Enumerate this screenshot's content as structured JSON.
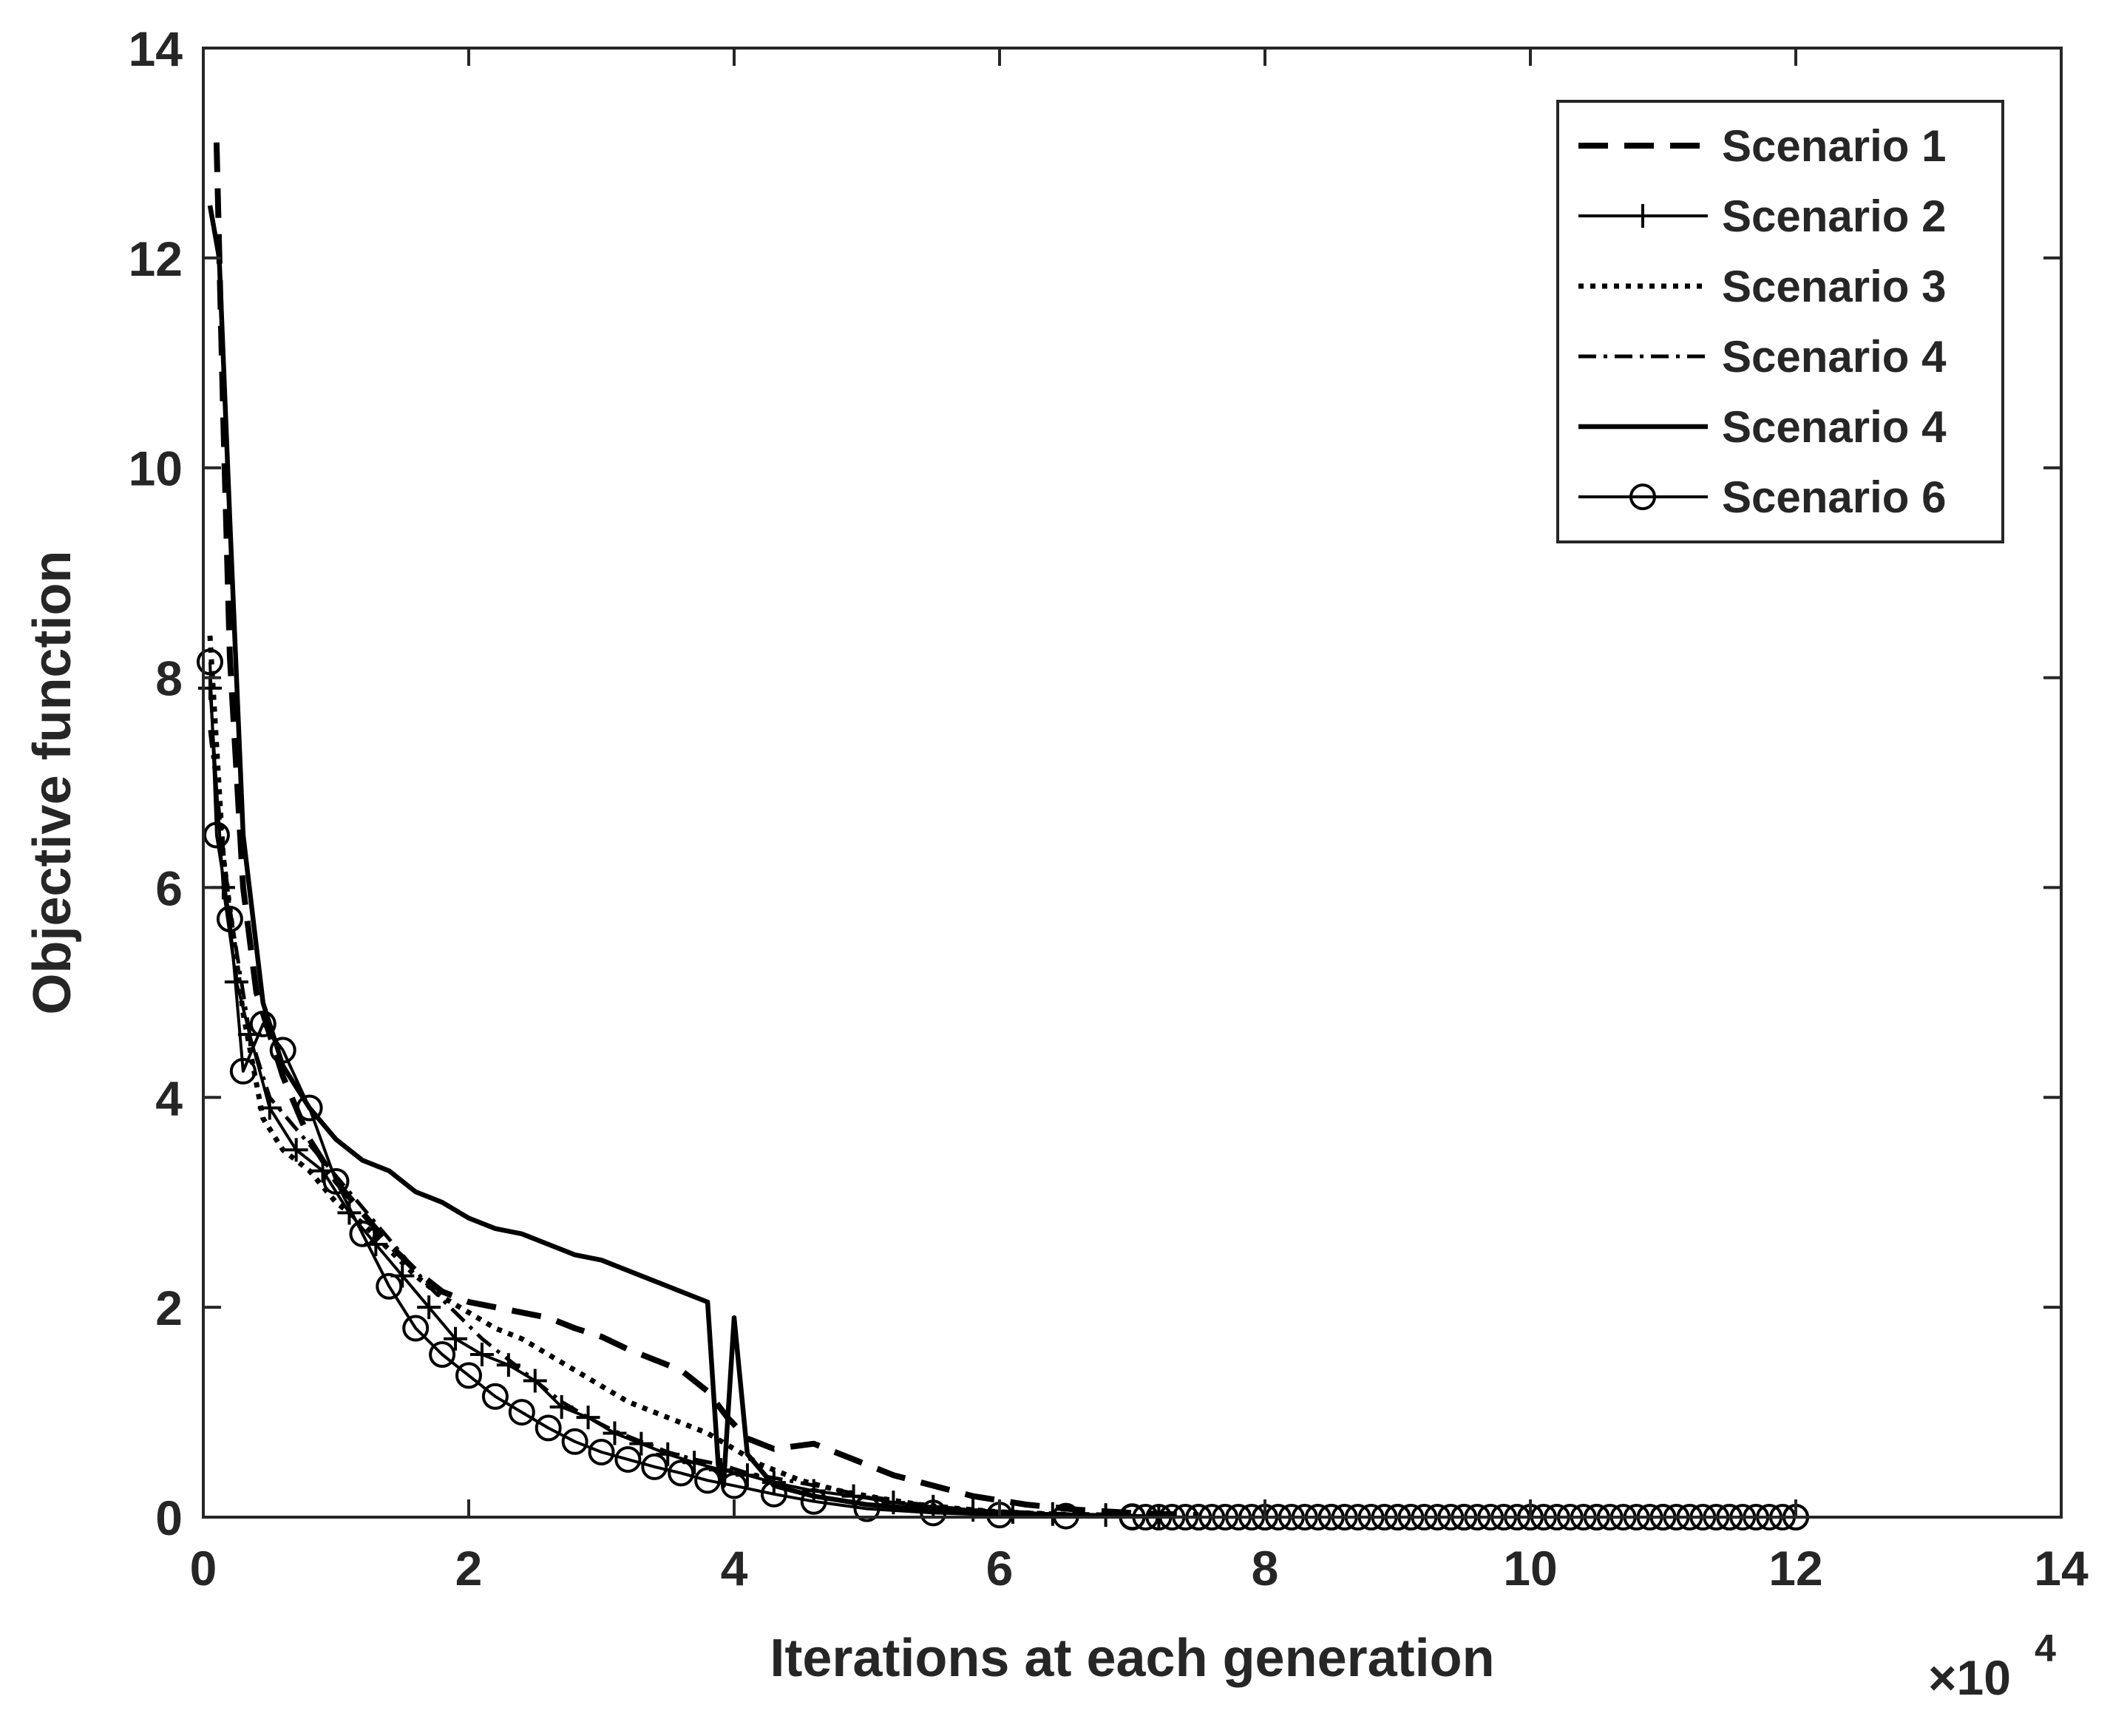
{
  "chart_data": {
    "type": "line",
    "title": "",
    "xlabel": "Iterations at each generation",
    "ylabel": "Objective function",
    "x_multiplier_label": "×10",
    "x_multiplier_exponent": "4",
    "xlim": [
      0,
      14
    ],
    "ylim": [
      0,
      14
    ],
    "x_ticks": [
      "0",
      "2",
      "4",
      "6",
      "8",
      "10",
      "12",
      "14"
    ],
    "y_ticks": [
      "0",
      "2",
      "4",
      "6",
      "8",
      "10",
      "12",
      "14"
    ],
    "x_tick_values": [
      0,
      2,
      4,
      6,
      8,
      10,
      12,
      14
    ],
    "y_tick_values": [
      0,
      2,
      4,
      6,
      8,
      10,
      12,
      14
    ],
    "grid": false,
    "legend_position": "top-right",
    "line_color": "#000000",
    "series": [
      {
        "name": "Scenario 1",
        "style": "dashed",
        "x": [
          0.1,
          0.15,
          0.2,
          0.3,
          0.4,
          0.6,
          0.8,
          1.0,
          1.2,
          1.4,
          1.6,
          1.8,
          2.0,
          2.2,
          2.4,
          2.6,
          2.8,
          3.0,
          3.2,
          3.4,
          3.6,
          3.8,
          3.95,
          4.1,
          4.3,
          4.6,
          4.9,
          5.2,
          5.5,
          5.8,
          6.2,
          6.6,
          7.0,
          7.5
        ],
        "y": [
          13.1,
          10.5,
          8.2,
          6.0,
          5.0,
          4.2,
          3.6,
          3.2,
          2.9,
          2.6,
          2.35,
          2.15,
          2.05,
          2.0,
          1.95,
          1.9,
          1.8,
          1.72,
          1.6,
          1.5,
          1.4,
          1.2,
          0.95,
          0.75,
          0.65,
          0.7,
          0.55,
          0.4,
          0.3,
          0.2,
          0.12,
          0.07,
          0.04,
          0.02
        ]
      },
      {
        "name": "Scenario 2",
        "style": "solid-plus",
        "x": [
          0.05,
          0.15,
          0.25,
          0.35,
          0.5,
          0.7,
          0.9,
          1.1,
          1.3,
          1.5,
          1.7,
          1.9,
          2.1,
          2.3,
          2.5,
          2.7,
          2.9,
          3.1,
          3.3,
          3.5,
          3.7,
          3.9,
          4.1,
          4.3,
          4.6,
          4.9,
          5.2,
          5.5,
          5.8,
          6.1,
          6.4,
          6.8,
          7.2
        ],
        "y": [
          7.9,
          6.0,
          5.1,
          4.6,
          3.9,
          3.5,
          3.3,
          2.9,
          2.6,
          2.3,
          2.0,
          1.7,
          1.55,
          1.45,
          1.3,
          1.05,
          0.95,
          0.8,
          0.7,
          0.6,
          0.52,
          0.45,
          0.4,
          0.33,
          0.25,
          0.2,
          0.14,
          0.1,
          0.07,
          0.05,
          0.03,
          0.02,
          0.01
        ]
      },
      {
        "name": "Scenario 3",
        "style": "dotted",
        "x": [
          0.05,
          0.15,
          0.3,
          0.45,
          0.6,
          0.8,
          1.0,
          1.2,
          1.4,
          1.6,
          1.8,
          2.0,
          2.2,
          2.4,
          2.6,
          2.8,
          3.0,
          3.2,
          3.4,
          3.6,
          3.8,
          4.0,
          4.2,
          4.5,
          4.8,
          5.1,
          5.4,
          5.7,
          6.0,
          6.4,
          6.8
        ],
        "y": [
          8.4,
          6.3,
          4.8,
          3.8,
          3.5,
          3.3,
          3.0,
          2.8,
          2.55,
          2.3,
          2.1,
          1.95,
          1.8,
          1.7,
          1.55,
          1.4,
          1.25,
          1.1,
          1.0,
          0.9,
          0.8,
          0.65,
          0.5,
          0.35,
          0.25,
          0.18,
          0.12,
          0.08,
          0.05,
          0.03,
          0.02
        ]
      },
      {
        "name": "Scenario 4",
        "style": "dash-dot",
        "x": [
          0.05,
          0.2,
          0.35,
          0.5,
          0.7,
          0.9,
          1.1,
          1.3,
          1.5,
          1.7,
          1.9,
          2.1,
          2.3,
          2.5,
          2.7,
          2.9,
          3.1,
          3.3,
          3.5,
          3.7,
          3.9,
          4.1,
          4.4,
          4.7,
          5.0,
          5.3,
          5.6,
          5.9,
          6.3,
          6.7,
          7.1
        ],
        "y": [
          7.5,
          5.8,
          4.6,
          4.0,
          3.7,
          3.4,
          3.1,
          2.8,
          2.5,
          2.2,
          1.95,
          1.7,
          1.5,
          1.3,
          1.1,
          0.95,
          0.82,
          0.72,
          0.62,
          0.55,
          0.5,
          0.42,
          0.35,
          0.28,
          0.2,
          0.14,
          0.09,
          0.06,
          0.04,
          0.02,
          0.01
        ]
      },
      {
        "name": "Scenario 4",
        "style": "solid-thick",
        "x": [
          0.05,
          0.12,
          0.2,
          0.3,
          0.45,
          0.6,
          0.8,
          1.0,
          1.2,
          1.4,
          1.6,
          1.8,
          2.0,
          2.2,
          2.4,
          2.6,
          2.8,
          3.0,
          3.2,
          3.4,
          3.6,
          3.8,
          3.88,
          3.92,
          4.0,
          4.1,
          4.3,
          4.6,
          5.0,
          5.4,
          5.8,
          6.2,
          6.6,
          7.0
        ],
        "y": [
          12.5,
          12.0,
          9.5,
          6.5,
          4.9,
          4.3,
          3.9,
          3.6,
          3.4,
          3.3,
          3.1,
          3.0,
          2.85,
          2.75,
          2.7,
          2.6,
          2.5,
          2.45,
          2.35,
          2.25,
          2.15,
          2.05,
          0.5,
          0.3,
          1.9,
          0.6,
          0.3,
          0.2,
          0.12,
          0.08,
          0.05,
          0.03,
          0.02,
          0.01
        ]
      },
      {
        "name": "Scenario 6",
        "style": "solid-circle",
        "x": [
          0.05,
          0.1,
          0.2,
          0.3,
          0.45,
          0.6,
          0.8,
          1.0,
          1.2,
          1.4,
          1.6,
          1.8,
          2.0,
          2.2,
          2.4,
          2.6,
          2.8,
          3.0,
          3.2,
          3.4,
          3.6,
          3.8,
          4.0,
          4.3,
          4.6,
          5.0,
          5.5,
          6.0,
          6.5,
          7.0,
          7.5,
          8.0,
          8.5,
          9.0,
          9.5,
          10.0,
          10.5,
          11.0,
          11.5,
          12.0
        ],
        "y": [
          8.15,
          6.5,
          5.7,
          4.25,
          4.7,
          4.45,
          3.9,
          3.2,
          2.7,
          2.2,
          1.8,
          1.55,
          1.35,
          1.15,
          1.0,
          0.85,
          0.72,
          0.62,
          0.55,
          0.48,
          0.42,
          0.35,
          0.3,
          0.22,
          0.15,
          0.08,
          0.04,
          0.02,
          0.01,
          0.005,
          0,
          0,
          0,
          0,
          0,
          0,
          0,
          0,
          0,
          0
        ]
      }
    ]
  }
}
